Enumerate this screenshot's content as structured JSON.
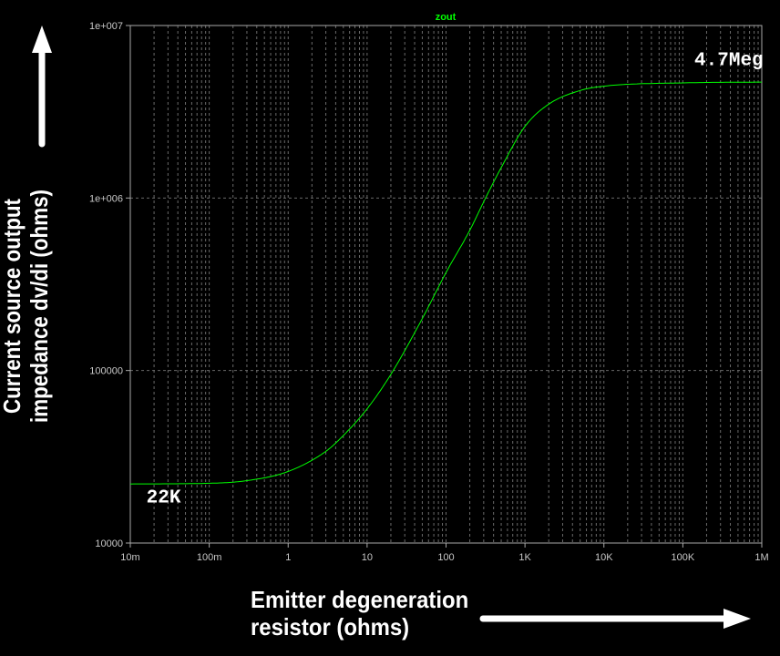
{
  "chart_data": {
    "type": "line",
    "title": "zout",
    "xlabel_lines": [
      "Emitter degeneration",
      "resistor (ohms)"
    ],
    "ylabel_lines": [
      "Current source output",
      "impedance dv/di (ohms)"
    ],
    "x_scale": "log",
    "y_scale": "log",
    "xlim": [
      0.01,
      1000000
    ],
    "ylim": [
      10000,
      10000000
    ],
    "x_ticks": [
      0.01,
      0.1,
      1,
      10,
      100,
      1000,
      10000,
      100000,
      1000000
    ],
    "x_tick_labels": [
      "10m",
      "100m",
      "1",
      "10",
      "100",
      "1K",
      "10K",
      "100K",
      "1M"
    ],
    "y_ticks": [
      10000,
      100000,
      1000000,
      10000000
    ],
    "y_tick_labels": [
      "10000",
      "100000",
      "1e+006",
      "1e+007"
    ],
    "grid": true,
    "series": [
      {
        "name": "zout",
        "color": "#00ff00",
        "x": [
          0.01,
          0.1,
          0.3,
          1,
          3,
          5,
          10,
          20,
          50,
          100,
          200,
          300,
          500,
          1000,
          2000,
          5000,
          10000,
          100000,
          1000000
        ],
        "y": [
          22000,
          22200,
          23000,
          26000,
          34000,
          42000,
          60000,
          95000,
          200000,
          370000,
          650000,
          950000,
          1500000,
          2600000,
          3500000,
          4200000,
          4450000,
          4650000,
          4700000
        ]
      }
    ],
    "annotations": [
      {
        "text": "22K",
        "x": 0.016,
        "y": 17200
      },
      {
        "text": "4.7Meg",
        "x": 140000,
        "y": 5900000
      }
    ]
  },
  "colors": {
    "background": "#000000",
    "axis": "#a0a0a0",
    "grid": "#6a6a6a",
    "trace": "#00ff00",
    "text": "#ffffff"
  },
  "arrows": {
    "y_arrow": "arrow-up",
    "x_arrow": "arrow-right"
  }
}
